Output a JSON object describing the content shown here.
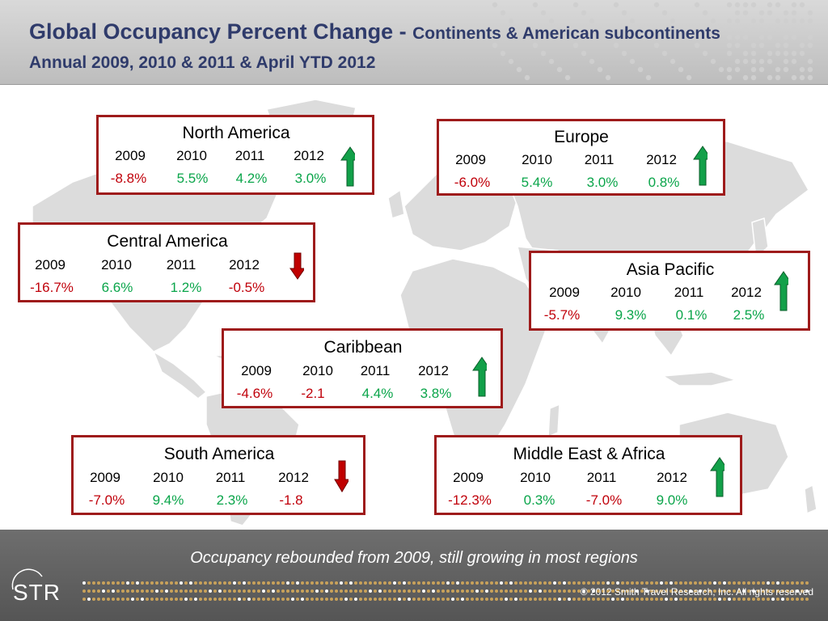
{
  "header": {
    "title_main": "Global Occupancy Percent Change - ",
    "title_sub": "Continents & American subcontinents",
    "subtitle": "Annual 2009, 2010 & 2011 & April YTD 2012"
  },
  "regions": [
    {
      "name": "North America",
      "years": [
        "2009",
        "2010",
        "2011",
        "2012"
      ],
      "values": [
        "-8.8%",
        "5.5%",
        "4.2%",
        "3.0%"
      ],
      "trend": "up"
    },
    {
      "name": "Europe",
      "years": [
        "2009",
        "2010",
        "2011",
        "2012"
      ],
      "values": [
        "-6.0%",
        "5.4%",
        "3.0%",
        "0.8%"
      ],
      "trend": "up"
    },
    {
      "name": "Central America",
      "years": [
        "2009",
        "2010",
        "2011",
        "2012"
      ],
      "values": [
        "-16.7%",
        "6.6%",
        "1.2%",
        "-0.5%"
      ],
      "trend": "down"
    },
    {
      "name": "Asia Pacific",
      "years": [
        "2009",
        "2010",
        "2011",
        "2012"
      ],
      "values": [
        "-5.7%",
        "9.3%",
        "0.1%",
        "2.5%"
      ],
      "trend": "up"
    },
    {
      "name": "Caribbean",
      "years": [
        "2009",
        "2010",
        "2011",
        "2012"
      ],
      "values": [
        "-4.6%",
        "-2.1",
        "4.4%",
        "3.8%"
      ],
      "trend": "up"
    },
    {
      "name": "South America",
      "years": [
        "2009",
        "2010",
        "2011",
        "2012"
      ],
      "values": [
        "-7.0%",
        "9.4%",
        "2.3%",
        "-1.8"
      ],
      "trend": "down"
    },
    {
      "name": "Middle East & Africa",
      "years": [
        "2009",
        "2010",
        "2011",
        "2012"
      ],
      "values": [
        "-12.3%",
        "0.3%",
        "-7.0%",
        "9.0%"
      ],
      "trend": "up"
    }
  ],
  "colors": {
    "negative": "#c0000a",
    "positive": "#0aa54a",
    "box_border": "#9e1b1b",
    "up_arrow": "#12a049",
    "down_arrow": "#c00000"
  },
  "icons": {
    "up": "up-arrow-icon",
    "down": "down-arrow-icon"
  },
  "footer": {
    "tagline": "Occupancy rebounded from 2009, still growing in most regions",
    "logo": "STR",
    "copyright": "© 2012 Smith Travel Research, Inc. All rights reserved"
  }
}
